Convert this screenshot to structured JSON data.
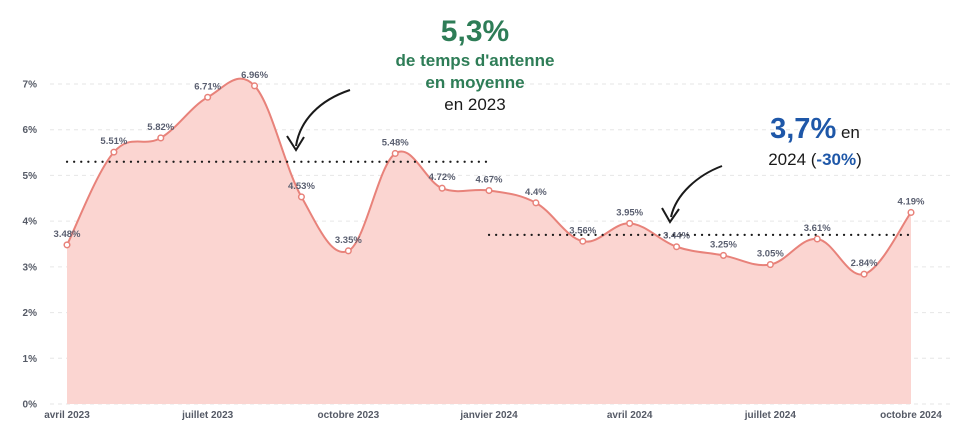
{
  "chart_data": {
    "type": "area",
    "x": [
      "2023-04",
      "2023-05",
      "2023-06",
      "2023-07",
      "2023-08",
      "2023-09",
      "2023-10",
      "2023-11",
      "2023-12",
      "2024-01",
      "2024-02",
      "2024-03",
      "2024-04",
      "2024-05",
      "2024-06",
      "2024-07",
      "2024-08",
      "2024-09",
      "2024-10"
    ],
    "x_tick_labels": [
      "avril 2023",
      "juillet 2023",
      "octobre 2023",
      "janvier 2024",
      "avril 2024",
      "juillet 2024",
      "octobre 2024"
    ],
    "x_tick_months": [
      "2023-04",
      "2023-07",
      "2023-10",
      "2024-01",
      "2024-04",
      "2024-07",
      "2024-10"
    ],
    "values": [
      3.48,
      5.51,
      5.82,
      6.71,
      6.96,
      4.53,
      3.35,
      5.48,
      4.72,
      4.67,
      4.4,
      3.56,
      3.95,
      3.44,
      3.25,
      3.05,
      3.61,
      2.84,
      4.19
    ],
    "value_labels": [
      "3.48%",
      "5.51%",
      "5.82%",
      "6.71%",
      "6.96%",
      "4.53%",
      "3.35%",
      "5.48%",
      "4.72%",
      "4.67%",
      "4.4%",
      "3.56%",
      "3.95%",
      "3.44%",
      "3.25%",
      "3.05%",
      "3.61%",
      "2.84%",
      "4.19%"
    ],
    "y_tick_labels": [
      "0%",
      "1%",
      "2%",
      "3%",
      "4%",
      "5%",
      "6%",
      "7%"
    ],
    "ylim": [
      0,
      7
    ],
    "grid": true,
    "reference_lines": [
      {
        "value": 5.3,
        "from": "2023-04",
        "to": "2024-01"
      },
      {
        "value": 3.7,
        "from": "2024-01",
        "to": "2024-10"
      }
    ],
    "colors": {
      "line": "#e8827a",
      "fill": "#fbd5d1",
      "grid": "#e6e6e6",
      "axis_text": "#555a66"
    }
  },
  "annotations": {
    "a2023": {
      "value": "5,3%",
      "line1": "de temps d'antenne",
      "line2": "en moyenne",
      "line3": "en 2023"
    },
    "a2024": {
      "value": "3,7%",
      "suffix": " en",
      "year": "2024 (",
      "change": "-30%",
      "close": ")"
    }
  }
}
